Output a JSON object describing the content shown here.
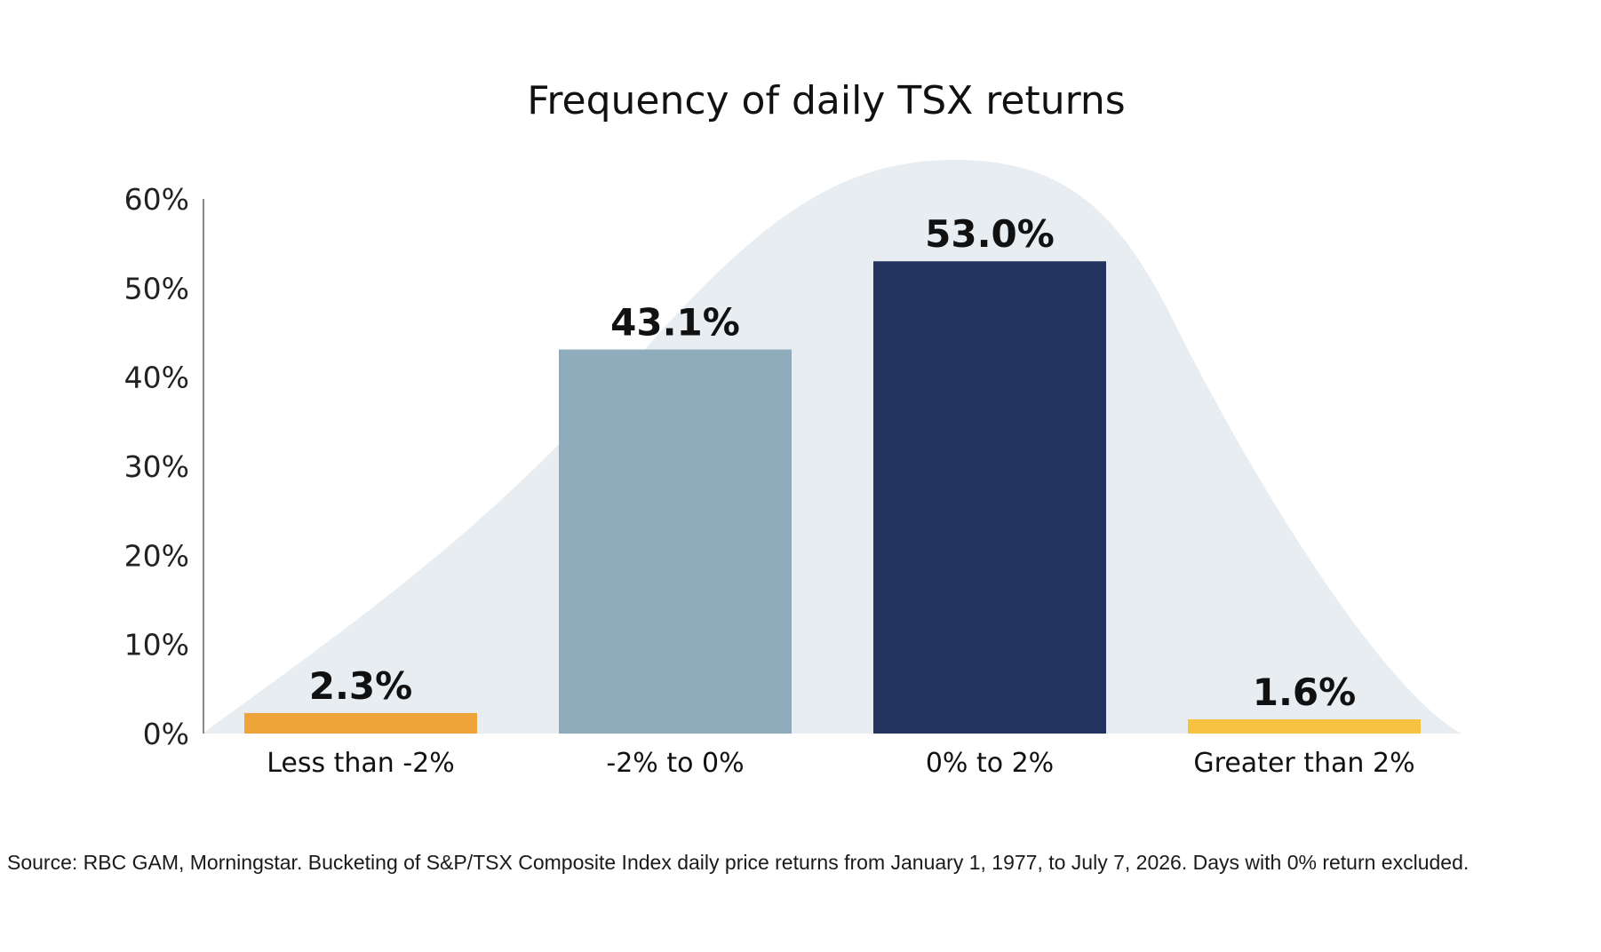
{
  "chart_data": {
    "type": "bar",
    "title": "Frequency of daily TSX returns",
    "categories": [
      "Less than -2%",
      "-2% to 0%",
      "0% to 2%",
      "Greater than 2%"
    ],
    "values": [
      2.3,
      43.1,
      53.0,
      1.6
    ],
    "value_labels": [
      "2.3%",
      "43.1%",
      "53.0%",
      "1.6%"
    ],
    "bar_colors": [
      "#EFA43A",
      "#8FACBC",
      "#233360",
      "#F5C241"
    ],
    "background_curve_color": "#E8EDF2",
    "ylim": [
      0,
      60
    ],
    "yticks": [
      0,
      10,
      20,
      30,
      40,
      50,
      60
    ],
    "ytick_labels": [
      "0%",
      "10%",
      "20%",
      "30%",
      "40%",
      "50%",
      "60%"
    ],
    "xlabel": "",
    "ylabel": "",
    "grid": false,
    "legend": "none"
  },
  "source_note": "Source: RBC GAM, Morningstar. Bucketing of S&P/TSX Composite Index daily price returns from January 1, 1977, to July 7, 2026. Days with 0% return excluded."
}
